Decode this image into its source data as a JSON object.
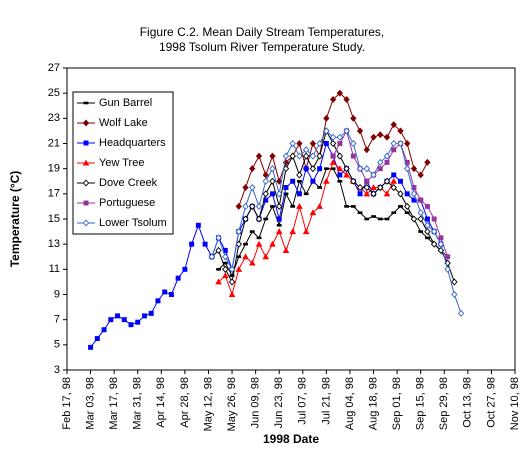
{
  "chart_data": {
    "type": "line",
    "title": [
      "Figure C.2.  Mean Daily Stream Temperatures,",
      "1998  Tsolum River Temperature Study."
    ],
    "x_label": "1998 Date",
    "y_label": "Temperature (°C)",
    "x": [
      "1998-03-03",
      "1998-03-07",
      "1998-03-11",
      "1998-03-15",
      "1998-03-19",
      "1998-03-23",
      "1998-03-27",
      "1998-03-31",
      "1998-04-04",
      "1998-04-08",
      "1998-04-12",
      "1998-04-16",
      "1998-04-20",
      "1998-04-24",
      "1998-04-28",
      "1998-05-02",
      "1998-05-06",
      "1998-05-10",
      "1998-05-14",
      "1998-05-18",
      "1998-05-22",
      "1998-05-26",
      "1998-05-30",
      "1998-06-03",
      "1998-06-07",
      "1998-06-11",
      "1998-06-15",
      "1998-06-19",
      "1998-06-23",
      "1998-06-27",
      "1998-07-01",
      "1998-07-05",
      "1998-07-09",
      "1998-07-13",
      "1998-07-17",
      "1998-07-21",
      "1998-07-25",
      "1998-07-29",
      "1998-08-02",
      "1998-08-06",
      "1998-08-10",
      "1998-08-14",
      "1998-08-18",
      "1998-08-22",
      "1998-08-26",
      "1998-08-30",
      "1998-09-03",
      "1998-09-07",
      "1998-09-11",
      "1998-09-15",
      "1998-09-19",
      "1998-09-23",
      "1998-09-27",
      "1998-10-01",
      "1998-10-05",
      "1998-10-09"
    ],
    "series": [
      {
        "name": "Gun Barrel",
        "color": "#000000",
        "marker": "dash",
        "values": [
          null,
          null,
          null,
          null,
          null,
          null,
          null,
          null,
          null,
          null,
          null,
          null,
          null,
          null,
          null,
          null,
          null,
          null,
          null,
          11,
          11.5,
          10.5,
          12,
          13,
          14,
          13.5,
          15,
          16,
          14.5,
          17,
          16,
          18,
          17,
          18,
          17.5,
          19,
          19,
          18,
          16,
          16,
          15.5,
          15,
          15.2,
          15,
          15,
          15.5,
          16,
          15.5,
          15,
          14,
          13.5,
          13,
          12.5,
          12,
          null,
          null
        ]
      },
      {
        "name": "Wolf Lake",
        "color": "#800000",
        "marker": "diamond",
        "values": [
          null,
          null,
          null,
          null,
          null,
          null,
          null,
          null,
          null,
          null,
          null,
          null,
          null,
          null,
          null,
          null,
          null,
          null,
          null,
          null,
          null,
          null,
          16,
          17.5,
          19,
          20,
          18.5,
          20,
          18,
          19.5,
          20,
          21,
          19,
          21,
          20,
          23,
          24.5,
          25,
          24.5,
          23,
          22,
          20.5,
          21.5,
          21.7,
          21.5,
          22.5,
          22,
          21,
          19,
          18.5,
          19.5,
          null,
          null,
          null,
          null,
          null
        ]
      },
      {
        "name": "Headquarters",
        "color": "#0000ff",
        "marker": "square",
        "values": [
          4.8,
          5.5,
          6.2,
          7,
          7.3,
          7,
          6.6,
          6.8,
          7.3,
          7.5,
          8.5,
          9.2,
          9,
          10.3,
          11,
          13,
          14.5,
          13,
          12,
          13.5,
          12.5,
          11,
          14,
          15,
          16,
          15,
          16.5,
          17,
          15,
          17.5,
          18,
          17,
          19,
          18,
          19,
          21,
          20,
          18.5,
          19,
          18,
          17,
          18,
          17,
          17.5,
          18,
          18.5,
          18,
          17,
          16.5,
          16.5,
          15,
          14,
          13,
          null,
          null,
          null
        ]
      },
      {
        "name": "Yew Tree",
        "color": "#ff0000",
        "marker": "triangle",
        "values": [
          null,
          null,
          null,
          null,
          null,
          null,
          null,
          null,
          null,
          null,
          null,
          null,
          null,
          null,
          null,
          null,
          null,
          null,
          null,
          10,
          10.5,
          9,
          11,
          12,
          11.5,
          13,
          12,
          13,
          14,
          12.5,
          14,
          16,
          14,
          15.5,
          16,
          18,
          19.5,
          19,
          18.5,
          18,
          17.5,
          17,
          17.5,
          17.5,
          17,
          18,
          null,
          null,
          null,
          null,
          null,
          null,
          null,
          null,
          null,
          null
        ]
      },
      {
        "name": "Dove Creek",
        "color": "#000000",
        "marker": "open-diamond",
        "values": [
          null,
          null,
          null,
          null,
          null,
          null,
          null,
          null,
          null,
          null,
          null,
          null,
          null,
          null,
          null,
          null,
          null,
          null,
          12,
          12.5,
          11,
          10,
          13,
          15,
          16,
          15,
          17,
          18,
          16,
          19,
          20,
          18.5,
          20,
          19,
          20,
          22,
          21,
          20,
          19,
          18,
          17.5,
          17.5,
          17,
          17.5,
          18,
          17.5,
          17,
          16,
          15,
          15,
          14,
          13,
          12.5,
          11.5,
          10,
          null
        ]
      },
      {
        "name": "Portuguese",
        "color": "#993399",
        "marker": "square",
        "values": [
          null,
          null,
          null,
          null,
          null,
          null,
          null,
          null,
          null,
          null,
          null,
          null,
          null,
          null,
          null,
          null,
          null,
          null,
          null,
          null,
          null,
          null,
          null,
          null,
          null,
          null,
          null,
          null,
          null,
          null,
          null,
          null,
          null,
          null,
          null,
          null,
          20,
          21,
          22,
          20,
          19,
          18,
          18.5,
          19,
          19.5,
          20.5,
          21,
          19.5,
          17.5,
          16.5,
          16,
          15,
          13.5,
          12,
          null,
          null
        ]
      },
      {
        "name": "Lower Tsolum",
        "color": "#3366cc",
        "marker": "open-diamond",
        "values": [
          null,
          null,
          null,
          null,
          null,
          null,
          null,
          null,
          null,
          null,
          null,
          null,
          null,
          null,
          null,
          null,
          null,
          null,
          12,
          13.5,
          12,
          11,
          14,
          16,
          17.5,
          16,
          18,
          19,
          17,
          20,
          21,
          20,
          20.5,
          20,
          21,
          22,
          21.5,
          21.5,
          22,
          21,
          19,
          19,
          18.5,
          19.5,
          20,
          21,
          21,
          19,
          17,
          15.5,
          14.5,
          14,
          13,
          11,
          9,
          7.5
        ]
      }
    ],
    "xlim": [
      "1998-02-17",
      "1998-11-10"
    ],
    "xticks": [
      {
        "value": "1998-02-17",
        "label": "Feb 17, 98"
      },
      {
        "value": "1998-03-03",
        "label": "Mar 03, 98"
      },
      {
        "value": "1998-03-17",
        "label": "Mar 17, 98"
      },
      {
        "value": "1998-03-31",
        "label": "Mar 31, 98"
      },
      {
        "value": "1998-04-14",
        "label": "Apr 14, 98"
      },
      {
        "value": "1998-04-28",
        "label": "Apr 28, 98"
      },
      {
        "value": "1998-05-12",
        "label": "May 12, 98"
      },
      {
        "value": "1998-05-26",
        "label": "May 26, 98"
      },
      {
        "value": "1998-06-09",
        "label": "Jun 09, 98"
      },
      {
        "value": "1998-06-23",
        "label": "Jun 23, 98"
      },
      {
        "value": "1998-07-07",
        "label": "Jul 07, 98"
      },
      {
        "value": "1998-07-21",
        "label": "Jul 21, 98"
      },
      {
        "value": "1998-08-04",
        "label": "Aug 04, 98"
      },
      {
        "value": "1998-08-18",
        "label": "Aug 18, 98"
      },
      {
        "value": "1998-09-01",
        "label": "Sep 01, 98"
      },
      {
        "value": "1998-09-15",
        "label": "Sep 15, 98"
      },
      {
        "value": "1998-09-29",
        "label": "Sep 29, 98"
      },
      {
        "value": "1998-10-13",
        "label": "Oct 13, 98"
      },
      {
        "value": "1998-10-27",
        "label": "Oct 27, 98"
      },
      {
        "value": "1998-11-10",
        "label": "Nov 10, 98"
      }
    ],
    "ylim": [
      3,
      27
    ],
    "yticks": [
      3,
      5,
      7,
      9,
      11,
      13,
      15,
      17,
      19,
      21,
      23,
      25,
      27
    ],
    "grid": false,
    "legend": "upper-left"
  }
}
